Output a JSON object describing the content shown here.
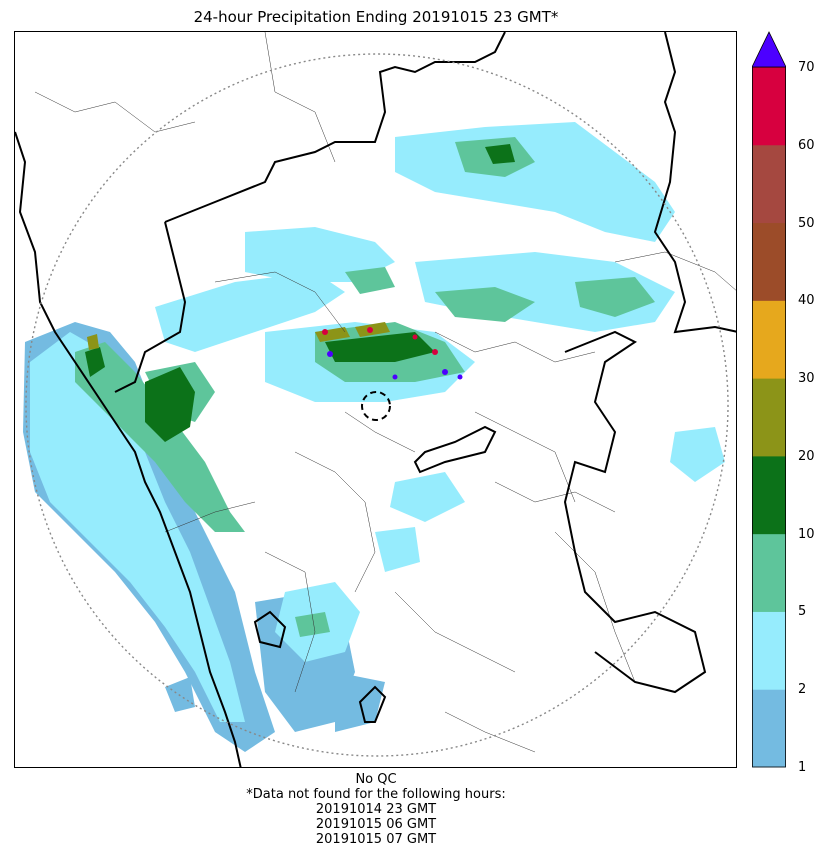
{
  "title": "24-hour Precipitation Ending 20191015 23 GMT*",
  "colorbar": {
    "ticks": [
      "1",
      "2",
      "5",
      "10",
      "20",
      "30",
      "40",
      "50",
      "60",
      "70"
    ],
    "colors": [
      "#74bbe1",
      "#96ecfd",
      "#5ec59b",
      "#0c7219",
      "#8c9418",
      "#e6a81d",
      "#9c4c29",
      "#a54840",
      "#d7003f"
    ],
    "extend_color": "#4c00ff"
  },
  "footer": {
    "qc": "No QC",
    "missing_note": "*Data not found for the following hours:",
    "hours": [
      "20191014 23 GMT",
      "20191015 06 GMT",
      "20191015 07 GMT"
    ]
  }
}
